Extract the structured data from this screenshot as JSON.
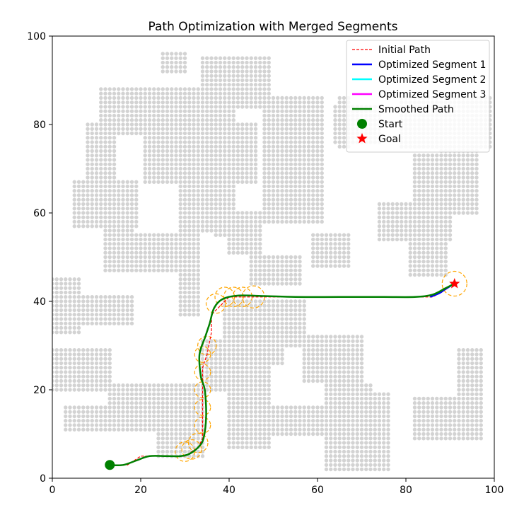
{
  "chart_data": {
    "type": "line",
    "title": "Path Optimization with Merged Segments",
    "xlabel": "",
    "ylabel": "",
    "xlim": [
      0,
      100
    ],
    "ylim": [
      0,
      100
    ],
    "xticks": [
      "0",
      "20",
      "40",
      "60",
      "80",
      "100"
    ],
    "yticks": [
      "0",
      "20",
      "40",
      "60",
      "80",
      "100"
    ],
    "grid": false,
    "legend_position": "top-right",
    "colors": {
      "obstacle": "#d3d3d3",
      "initial": "#ff0000",
      "seg1": "#0000ff",
      "seg2": "#00ffff",
      "seg3": "#ff00ff",
      "smoothed": "#008000",
      "circle": "#ffa500",
      "start": "#008000",
      "goal": "#ff0000"
    },
    "obstacles": [
      [
        25,
        92,
        30,
        96
      ],
      [
        34,
        84,
        49,
        95
      ],
      [
        11,
        78,
        41,
        88
      ],
      [
        8,
        67,
        14,
        80
      ],
      [
        21,
        67,
        46,
        80
      ],
      [
        29,
        56,
        41,
        83
      ],
      [
        37,
        55,
        47,
        60
      ],
      [
        40,
        51,
        47,
        60
      ],
      [
        5,
        57,
        19,
        67
      ],
      [
        12,
        47,
        18,
        56
      ],
      [
        19,
        47,
        33,
        55
      ],
      [
        29,
        37,
        33,
        52
      ],
      [
        48,
        58,
        61,
        86
      ],
      [
        64,
        76,
        74,
        84
      ],
      [
        65,
        75,
        67,
        86
      ],
      [
        79,
        75,
        99,
        86
      ],
      [
        88,
        72,
        96,
        84
      ],
      [
        82,
        60,
        96,
        73
      ],
      [
        74,
        54,
        90,
        62
      ],
      [
        81,
        46,
        89,
        57
      ],
      [
        59,
        48,
        67,
        55
      ],
      [
        45,
        44,
        56,
        50
      ],
      [
        0,
        33,
        6,
        45
      ],
      [
        0,
        35,
        18,
        41
      ],
      [
        39,
        30,
        57,
        40
      ],
      [
        44,
        26,
        52,
        31
      ],
      [
        57,
        22,
        70,
        32
      ],
      [
        0,
        20,
        13,
        29
      ],
      [
        34,
        20,
        49,
        31
      ],
      [
        13,
        11,
        33,
        21
      ],
      [
        3,
        11,
        21,
        16
      ],
      [
        24,
        5,
        34,
        21
      ],
      [
        40,
        7,
        49,
        21
      ],
      [
        49,
        10,
        61,
        16
      ],
      [
        62,
        9,
        72,
        21
      ],
      [
        66,
        2,
        76,
        19
      ],
      [
        62,
        2,
        68,
        11
      ],
      [
        82,
        9,
        97,
        18
      ],
      [
        92,
        9,
        97,
        29
      ]
    ],
    "initial_path": [
      [
        13,
        3
      ],
      [
        17,
        3
      ],
      [
        20,
        5
      ],
      [
        23,
        5
      ],
      [
        27,
        5
      ],
      [
        30,
        5
      ],
      [
        33,
        7
      ],
      [
        34,
        9
      ],
      [
        34,
        18
      ],
      [
        34,
        25
      ],
      [
        35,
        28
      ],
      [
        36,
        33
      ],
      [
        36,
        37
      ],
      [
        38,
        39
      ],
      [
        40,
        41
      ],
      [
        45,
        41
      ],
      [
        55,
        41
      ],
      [
        65,
        41
      ],
      [
        75,
        41
      ],
      [
        83,
        41
      ],
      [
        86,
        41
      ],
      [
        88,
        42
      ],
      [
        91,
        44
      ]
    ],
    "smoothed_path": [
      [
        13,
        3
      ],
      [
        16,
        3
      ],
      [
        19,
        4
      ],
      [
        22,
        5
      ],
      [
        26,
        5
      ],
      [
        29,
        5
      ],
      [
        31,
        5.5
      ],
      [
        33,
        7
      ],
      [
        34.2,
        9
      ],
      [
        34.8,
        14
      ],
      [
        34.5,
        20
      ],
      [
        33.6,
        23
      ],
      [
        33.3,
        28
      ],
      [
        34.6,
        32
      ],
      [
        35.6,
        35
      ],
      [
        36.6,
        38.5
      ],
      [
        38.5,
        40.5
      ],
      [
        42,
        41.3
      ],
      [
        48,
        41.2
      ],
      [
        55,
        41
      ],
      [
        65,
        41
      ],
      [
        75,
        41
      ],
      [
        82,
        41
      ],
      [
        86,
        41.5
      ],
      [
        89,
        43
      ],
      [
        91,
        44
      ]
    ],
    "segments": [
      {
        "name": "Optimized Segment 1",
        "points": [
          [
            85.5,
            41
          ],
          [
            87.5,
            41.8
          ],
          [
            89,
            42.8
          ],
          [
            91,
            44
          ]
        ]
      },
      {
        "name": "Optimized Segment 2",
        "points": []
      },
      {
        "name": "Optimized Segment 3",
        "points": []
      }
    ],
    "circles": [
      {
        "x": 30,
        "y": 6,
        "r": 2.2
      },
      {
        "x": 31.5,
        "y": 6.5,
        "r": 2.2
      },
      {
        "x": 33,
        "y": 8,
        "r": 2.2
      },
      {
        "x": 34,
        "y": 12,
        "r": 1.8
      },
      {
        "x": 34,
        "y": 16,
        "r": 1.8
      },
      {
        "x": 34,
        "y": 20,
        "r": 1.8
      },
      {
        "x": 34,
        "y": 24,
        "r": 1.8
      },
      {
        "x": 34,
        "y": 28,
        "r": 1.8
      },
      {
        "x": 35,
        "y": 30,
        "r": 2.1
      },
      {
        "x": 37,
        "y": 39.5,
        "r": 2.2
      },
      {
        "x": 39,
        "y": 41,
        "r": 2.2
      },
      {
        "x": 41,
        "y": 41,
        "r": 2.2
      },
      {
        "x": 43,
        "y": 41,
        "r": 2.2
      },
      {
        "x": 45.5,
        "y": 41,
        "r": 2.5
      },
      {
        "x": 91,
        "y": 44,
        "r": 2.8
      }
    ],
    "start": {
      "label": "Start",
      "x": 13,
      "y": 3
    },
    "goal": {
      "label": "Goal",
      "x": 91,
      "y": 44
    },
    "legend": [
      {
        "label": "Initial Path",
        "style": "dashed",
        "color": "#ff0000"
      },
      {
        "label": "Optimized Segment 1",
        "style": "solid",
        "color": "#0000ff"
      },
      {
        "label": "Optimized Segment 2",
        "style": "solid",
        "color": "#00ffff"
      },
      {
        "label": "Optimized Segment 3",
        "style": "solid",
        "color": "#ff00ff"
      },
      {
        "label": "Smoothed Path",
        "style": "solid",
        "color": "#008000"
      },
      {
        "label": "Start",
        "style": "circle",
        "color": "#008000"
      },
      {
        "label": "Goal",
        "style": "star",
        "color": "#ff0000"
      }
    ]
  }
}
